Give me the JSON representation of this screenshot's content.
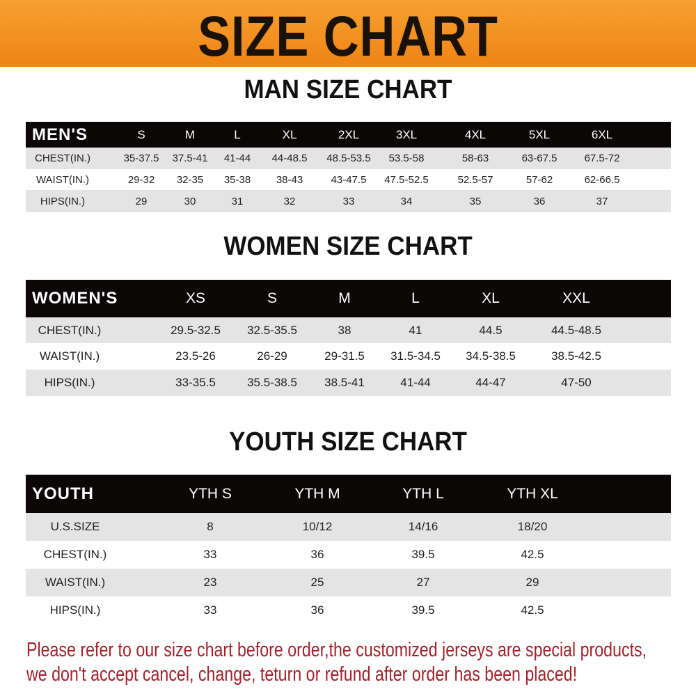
{
  "title": "SIZE CHART",
  "colors": {
    "banner": "#f08a1c",
    "header_bg": "#0b0707",
    "row_alt": "#e4e4e4",
    "notice": "#a3202a"
  },
  "men": {
    "title": "MAN SIZE CHART",
    "header": [
      "MEN'S",
      "S",
      "M",
      "L",
      "XL",
      "2XL",
      "3XL",
      "4XL",
      "5XL",
      "6XL"
    ],
    "rows": [
      [
        "CHEST(IN.)",
        "35-37.5",
        "37.5-41",
        "41-44",
        "44-48.5",
        "48.5-53.5",
        "53.5-58",
        "58-63",
        "63-67.5",
        "67.5-72"
      ],
      [
        "WAIST(IN.)",
        "29-32",
        "32-35",
        "35-38",
        "38-43",
        "43-47.5",
        "47.5-52.5",
        "52.5-57",
        "57-62",
        "62-66.5"
      ],
      [
        "HIPS(IN.)",
        "29",
        "30",
        "31",
        "32",
        "33",
        "34",
        "35",
        "36",
        "37"
      ]
    ]
  },
  "women": {
    "title": "WOMEN SIZE CHART",
    "header": [
      "WOMEN'S",
      "XS",
      "S",
      "M",
      "L",
      "XL",
      "XXL"
    ],
    "rows": [
      [
        "CHEST(IN.)",
        "29.5-32.5",
        "32.5-35.5",
        "38",
        "41",
        "44.5",
        "44.5-48.5"
      ],
      [
        "WAIST(IN.)",
        "23.5-26",
        "26-29",
        "29-31.5",
        "31.5-34.5",
        "34.5-38.5",
        "38.5-42.5"
      ],
      [
        "HIPS(IN.)",
        "33-35.5",
        "35.5-38.5",
        "38.5-41",
        "41-44",
        "44-47",
        "47-50"
      ]
    ]
  },
  "youth": {
    "title": "YOUTH SIZE CHART",
    "header": [
      "YOUTH",
      "YTH S",
      "YTH M",
      "YTH L",
      "YTH XL"
    ],
    "rows": [
      [
        "U.S.SIZE",
        "8",
        "10/12",
        "14/16",
        "18/20"
      ],
      [
        "CHEST(IN.)",
        "33",
        "36",
        "39.5",
        "42.5"
      ],
      [
        "WAIST(IN.)",
        "23",
        "25",
        "27",
        "29"
      ],
      [
        "HIPS(IN.)",
        "33",
        "36",
        "39.5",
        "42.5"
      ]
    ]
  },
  "notice": {
    "line1": "Please refer to our size chart before order,the customized jerseys are special products,",
    "line2": "we don't accept cancel, change, teturn or refund after order has been placed!"
  }
}
